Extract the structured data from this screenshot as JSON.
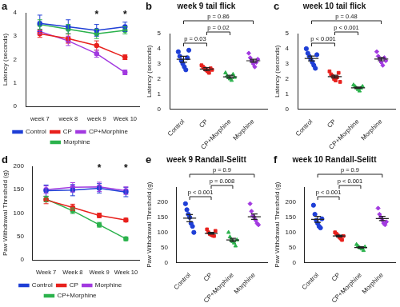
{
  "chart_data": [
    {
      "label": "a",
      "type": "line",
      "categories": [
        "week 7",
        "week 8",
        "week 9",
        "Week 10"
      ],
      "y_label": "Latency (seconds)",
      "ylim": [
        0,
        4
      ],
      "yticks": [
        0,
        1,
        2,
        3,
        4
      ],
      "grid": false,
      "legend": "bottom",
      "series": [
        {
          "name": "Control",
          "color": "#1f3fd6",
          "values": [
            3.55,
            3.4,
            3.25,
            3.4
          ],
          "errors": [
            0.35,
            0.3,
            0.25,
            0.2
          ]
        },
        {
          "name": "CP",
          "color": "#e8211d",
          "values": [
            3.1,
            2.9,
            2.6,
            2.1
          ],
          "errors": [
            0.15,
            0.2,
            0.2,
            0.1
          ]
        },
        {
          "name": "CP+Morphine",
          "color": "#a23ae0",
          "values": [
            3.2,
            2.8,
            2.25,
            1.45
          ],
          "errors": [
            0.1,
            0.2,
            0.15,
            0.1
          ]
        },
        {
          "name": "Morphine",
          "color": "#2bb24c",
          "values": [
            3.5,
            3.3,
            3.1,
            3.25
          ],
          "errors": [
            0.2,
            0.2,
            0.2,
            0.15
          ]
        }
      ],
      "annotations": [
        {
          "x": "week 9",
          "text": "*"
        },
        {
          "x": "Week 10",
          "text": "*"
        }
      ]
    },
    {
      "label": "b",
      "type": "dot",
      "title": "week 9 tail flick",
      "y_label": "Latency (seconds)",
      "ylim": [
        0,
        5
      ],
      "yticks": [
        0,
        1,
        2,
        3,
        4,
        5
      ],
      "grid": false,
      "series": [
        {
          "name": "Control",
          "color": "#1f3fd6",
          "marker": "circle",
          "values": [
            3.8,
            3.5,
            3.2,
            3.0,
            2.8,
            2.6,
            3.4,
            3.9
          ],
          "mean": 3.3,
          "error": 0.2
        },
        {
          "name": "CP",
          "color": "#e8211d",
          "marker": "square",
          "values": [
            2.9,
            2.8,
            2.7,
            2.6,
            2.5,
            2.4,
            2.7,
            2.6
          ],
          "mean": 2.65,
          "error": 0.1
        },
        {
          "name": "CP+Morphine",
          "color": "#2bb24c",
          "marker": "triangle",
          "values": [
            2.4,
            2.2,
            2.1,
            2.0,
            1.9,
            2.3,
            2.1
          ],
          "mean": 2.14,
          "error": 0.1
        },
        {
          "name": "Morphine",
          "color": "#a23ae0",
          "marker": "diamond",
          "values": [
            3.7,
            3.4,
            3.2,
            3.0,
            2.8,
            3.1,
            3.3
          ],
          "mean": 3.2,
          "error": 0.1
        }
      ],
      "comparisons": [
        {
          "from": "Control",
          "to": "CP",
          "text": "p = 0.03"
        },
        {
          "from": "CP",
          "to": "CP+Morphine",
          "text": "p = 0.02"
        },
        {
          "from": "Control",
          "to": "Morphine",
          "text": "p = 0.86"
        }
      ]
    },
    {
      "label": "c",
      "type": "dot",
      "title": "week 10 tail flick",
      "y_label": "Latency (seconds)",
      "ylim": [
        0,
        5
      ],
      "yticks": [
        0,
        1,
        2,
        3,
        4,
        5
      ],
      "grid": false,
      "series": [
        {
          "name": "Control",
          "color": "#1f3fd6",
          "marker": "circle",
          "values": [
            4.0,
            3.7,
            3.5,
            3.3,
            3.1,
            2.9,
            2.7,
            3.6
          ],
          "mean": 3.35,
          "error": 0.16
        },
        {
          "name": "CP",
          "color": "#e8211d",
          "marker": "square",
          "values": [
            2.5,
            2.3,
            2.2,
            2.0,
            1.9,
            2.1,
            2.4,
            1.8
          ],
          "mean": 2.15,
          "error": 0.09
        },
        {
          "name": "CP+Morphine",
          "color": "#2bb24c",
          "marker": "triangle",
          "values": [
            1.6,
            1.5,
            1.4,
            1.3,
            1.2,
            1.4,
            1.5
          ],
          "mean": 1.41,
          "error": 0.05
        },
        {
          "name": "Morphine",
          "color": "#a23ae0",
          "marker": "diamond",
          "values": [
            3.8,
            3.5,
            3.3,
            3.1,
            2.9,
            3.4,
            3.2
          ],
          "mean": 3.31,
          "error": 0.11
        }
      ],
      "comparisons": [
        {
          "from": "Control",
          "to": "CP",
          "text": "p < 0.001"
        },
        {
          "from": "CP",
          "to": "CP+Morphine",
          "text": "p < 0.001"
        },
        {
          "from": "Control",
          "to": "Morphine",
          "text": "p = 0.48"
        }
      ]
    },
    {
      "label": "d",
      "type": "line",
      "categories": [
        "Week 7",
        "Week 8",
        "Week 9",
        "Week 10"
      ],
      "y_label": "Paw Withdrawal Threshold (g)",
      "ylim": [
        0,
        200
      ],
      "yticks": [
        0,
        50,
        100,
        150,
        200
      ],
      "grid": false,
      "legend": "bottom",
      "series": [
        {
          "name": "Control",
          "color": "#1f3fd6",
          "values": [
            148,
            149,
            153,
            145
          ],
          "errors": [
            12,
            12,
            10,
            10
          ]
        },
        {
          "name": "CP",
          "color": "#e8211d",
          "values": [
            128,
            112,
            95,
            85
          ],
          "errors": [
            8,
            7,
            5,
            4
          ]
        },
        {
          "name": "Morphine",
          "color": "#a23ae0",
          "values": [
            150,
            155,
            156,
            148
          ],
          "errors": [
            8,
            10,
            10,
            8
          ]
        },
        {
          "name": "CP+Morphine",
          "color": "#2bb24c",
          "values": [
            130,
            105,
            75,
            45
          ],
          "errors": [
            6,
            6,
            5,
            4
          ]
        }
      ],
      "annotations": [
        {
          "x": "Week 9",
          "text": "*"
        },
        {
          "x": "Week 10",
          "text": "*"
        }
      ]
    },
    {
      "label": "e",
      "type": "dot",
      "title": "week 9 Randall-Selitt",
      "y_label": "Paw Withdrawal Threshold (g)",
      "ylim": [
        0,
        250
      ],
      "yticks": [
        0,
        50,
        100,
        150,
        200
      ],
      "grid": false,
      "series": [
        {
          "name": "Control",
          "color": "#1f3fd6",
          "marker": "circle",
          "values": [
            195,
            175,
            160,
            150,
            130,
            120,
            100
          ],
          "mean": 147,
          "error": 12
        },
        {
          "name": "CP",
          "color": "#e8211d",
          "marker": "square",
          "values": [
            110,
            100,
            95,
            92,
            90,
            88,
            105
          ],
          "mean": 97,
          "error": 3
        },
        {
          "name": "CP+Morphine",
          "color": "#2bb24c",
          "marker": "triangle",
          "values": [
            100,
            85,
            75,
            70,
            65,
            55,
            75
          ],
          "mean": 75,
          "error": 5.5
        },
        {
          "name": "Morphine",
          "color": "#a23ae0",
          "marker": "diamond",
          "values": [
            195,
            170,
            155,
            150,
            140,
            130,
            125
          ],
          "mean": 152,
          "error": 9
        }
      ],
      "comparisons": [
        {
          "from": "Control",
          "to": "CP",
          "text": "p < 0.001"
        },
        {
          "from": "CP",
          "to": "CP+Morphine",
          "text": "p = 0.008"
        },
        {
          "from": "Control",
          "to": "Morphine",
          "text": "p = 0.9"
        }
      ]
    },
    {
      "label": "f",
      "type": "dot",
      "title": "week 10 Randall-Selitt",
      "y_label": "Paw Withdrawal Threshold (g)",
      "ylim": [
        0,
        250
      ],
      "yticks": [
        0,
        50,
        100,
        150,
        200
      ],
      "grid": false,
      "series": [
        {
          "name": "Control",
          "color": "#1f3fd6",
          "marker": "circle",
          "values": [
            190,
            160,
            140,
            130,
            120,
            115,
            145
          ],
          "mean": 143,
          "error": 10
        },
        {
          "name": "CP",
          "color": "#e8211d",
          "marker": "square",
          "values": [
            100,
            95,
            90,
            85,
            80,
            75,
            88
          ],
          "mean": 88,
          "error": 3
        },
        {
          "name": "CP+Morphine",
          "color": "#2bb24c",
          "marker": "triangle",
          "values": [
            60,
            55,
            50,
            48,
            45,
            40,
            52
          ],
          "mean": 50,
          "error": 2.5
        },
        {
          "name": "Morphine",
          "color": "#a23ae0",
          "marker": "diamond",
          "values": [
            180,
            160,
            150,
            140,
            130,
            125,
            135
          ],
          "mean": 146,
          "error": 7
        }
      ],
      "comparisons": [
        {
          "from": "Control",
          "to": "CP",
          "text": "p < 0.001"
        },
        {
          "from": "CP",
          "to": "CP+Morphine",
          "text": "p < 0.001"
        },
        {
          "from": "Control",
          "to": "Morphine",
          "text": "p = 0.9"
        }
      ]
    }
  ]
}
